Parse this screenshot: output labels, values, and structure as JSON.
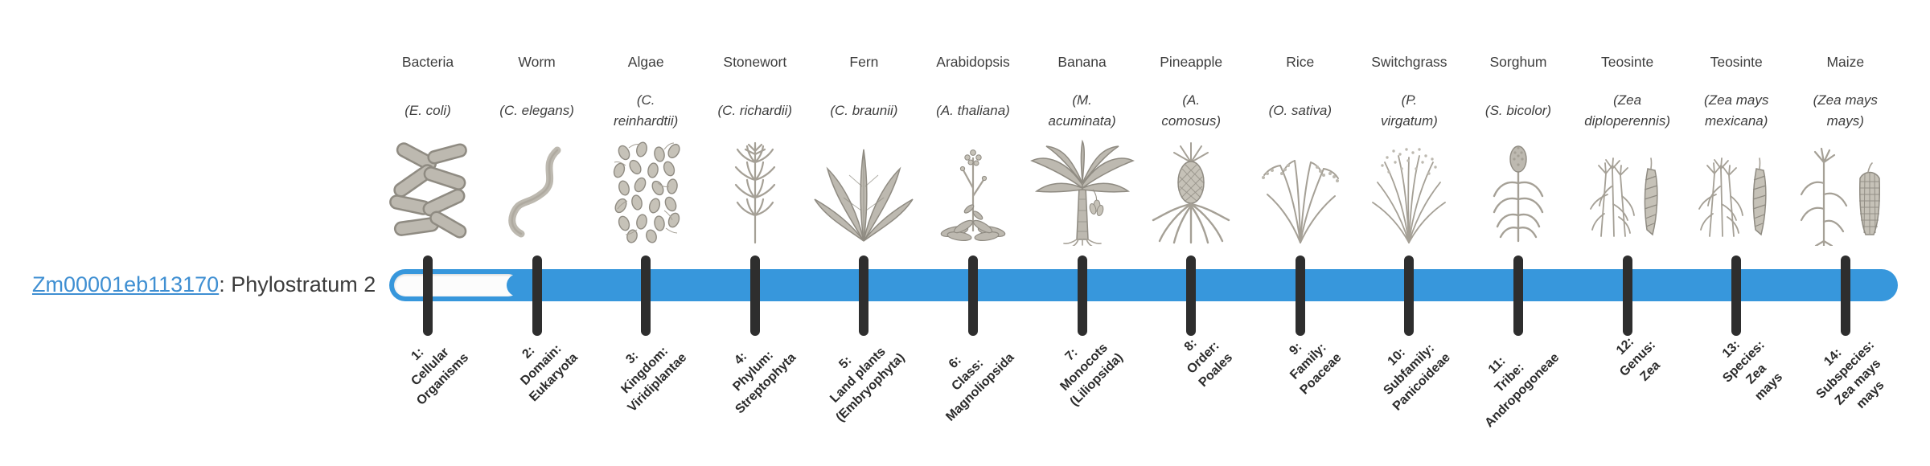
{
  "colors": {
    "bar_blue": "#3797dc",
    "tick_dark": "#2e2e2e",
    "link_blue": "#3f8fd2",
    "text_dark": "#3c3c3c"
  },
  "gene_label": {
    "id": "Zm00001eb113170",
    "suffix": ": Phylostratum 2"
  },
  "phylostratum": {
    "value": 2,
    "filled_from_stratum": 2,
    "total_strata": 14
  },
  "organisms": [
    {
      "stratum": 1,
      "name": "Bacteria",
      "scientific": "(E. coli)",
      "icon": "bacteria-icon",
      "stratum_label": "1:\nCellular\nOrganisms"
    },
    {
      "stratum": 2,
      "name": "Worm",
      "scientific": "(C. elegans)",
      "icon": "worm-icon",
      "stratum_label": "2:\nDomain:\nEukaryota"
    },
    {
      "stratum": 3,
      "name": "Algae",
      "scientific": "(C.\nreinhardtii)",
      "icon": "algae-icon",
      "stratum_label": "3:\nKingdom:\nViridiplantae"
    },
    {
      "stratum": 4,
      "name": "Stonewort",
      "scientific": "(C. richardii)",
      "icon": "stonewort-icon",
      "stratum_label": "4:\nPhylum:\nStreptophyta"
    },
    {
      "stratum": 5,
      "name": "Fern",
      "scientific": "(C. braunii)",
      "icon": "fern-icon",
      "stratum_label": "5:\nLand plants\n(Embryophyta)"
    },
    {
      "stratum": 6,
      "name": "Arabidopsis",
      "scientific": "(A. thaliana)",
      "icon": "arabidopsis-icon",
      "stratum_label": "6:\nClass:\nMagnoliopsida"
    },
    {
      "stratum": 7,
      "name": "Banana",
      "scientific": "(M.\nacuminata)",
      "icon": "banana-icon",
      "stratum_label": "7:\nMonocots\n(Liliopsida)"
    },
    {
      "stratum": 8,
      "name": "Pineapple",
      "scientific": "(A.\ncomosus)",
      "icon": "pineapple-icon",
      "stratum_label": "8:\nOrder:\nPoales"
    },
    {
      "stratum": 9,
      "name": "Rice",
      "scientific": "(O. sativa)",
      "icon": "rice-icon",
      "stratum_label": "9:\nFamily:\nPoaceae"
    },
    {
      "stratum": 10,
      "name": "Switchgrass",
      "scientific": "(P.\nvirgatum)",
      "icon": "switchgrass-icon",
      "stratum_label": "10:\nSubfamily:\nPanicoideae"
    },
    {
      "stratum": 11,
      "name": "Sorghum",
      "scientific": "(S. bicolor)",
      "icon": "sorghum-icon",
      "stratum_label": "11:\nTribe:\nAndropogoneae"
    },
    {
      "stratum": 12,
      "name": "Teosinte",
      "scientific": "(Zea\ndiploperennis)",
      "icon": "teosinte-icon",
      "stratum_label": "12:\nGenus:\nZea"
    },
    {
      "stratum": 13,
      "name": "Teosinte",
      "scientific": "(Zea mays\nmexicana)",
      "icon": "teosinte-icon",
      "stratum_label": "13:\nSpecies:\nZea\nmays"
    },
    {
      "stratum": 14,
      "name": "Maize",
      "scientific": "(Zea mays\nmays)",
      "icon": "maize-icon",
      "stratum_label": "14:\nSubspecies:\nZea mays\nmays"
    }
  ]
}
